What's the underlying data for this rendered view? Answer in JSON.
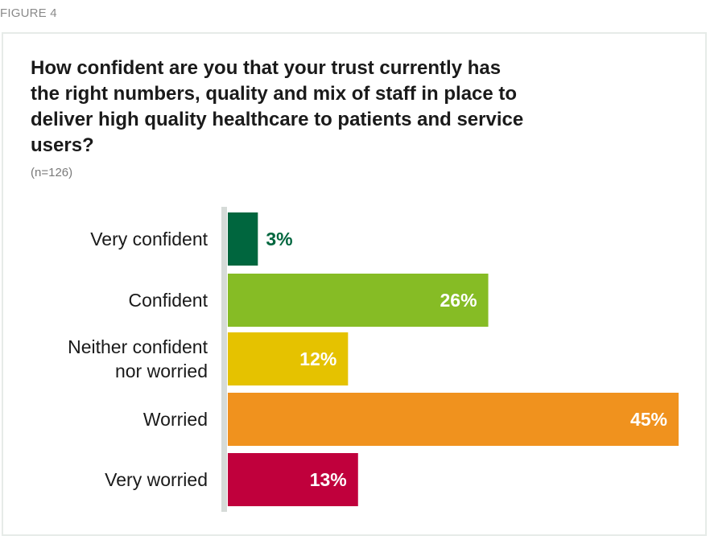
{
  "figure_label": "FIGURE 4",
  "colors": {
    "very_confident": "#00663e",
    "confident": "#86bc25",
    "neither": "#e5c200",
    "worried": "#f0921e",
    "very_worried": "#c0003c",
    "axis": "#d6dbd8"
  },
  "chart_data": {
    "type": "bar",
    "orientation": "horizontal",
    "title": "How confident are you that your trust currently has the right numbers, quality and mix of staff in place to deliver high quality healthcare to patients and service users?",
    "subtitle": "(n=126)",
    "categories": [
      [
        "Very confident"
      ],
      [
        "Confident"
      ],
      [
        "Neither confident",
        "nor worried"
      ],
      [
        "Worried"
      ],
      [
        "Very worried"
      ]
    ],
    "values": [
      3,
      26,
      12,
      45,
      13
    ],
    "value_labels": [
      "3%",
      "26%",
      "12%",
      "45%",
      "13%"
    ],
    "unit": "%",
    "xlim": [
      0,
      45
    ],
    "grid": false,
    "legend": "none"
  }
}
